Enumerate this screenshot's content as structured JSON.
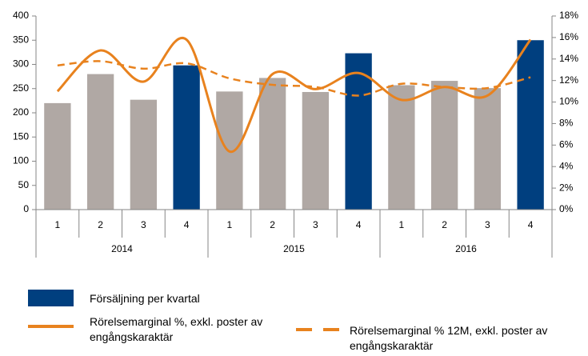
{
  "chart_data": {
    "type": "bar_line",
    "categories": [
      "1",
      "2",
      "3",
      "4",
      "1",
      "2",
      "3",
      "4",
      "1",
      "2",
      "3",
      "4"
    ],
    "groups": [
      "2014",
      "2015",
      "2016"
    ],
    "ylim": [
      0,
      400
    ],
    "yticks": [
      0,
      50,
      100,
      150,
      200,
      250,
      300,
      350,
      400
    ],
    "y2lim": [
      0,
      18
    ],
    "y2ticks": [
      {
        "value": 0,
        "label": "0%"
      },
      {
        "value": 2,
        "label": "2%"
      },
      {
        "value": 4,
        "label": "4%"
      },
      {
        "value": 6,
        "label": "6%"
      },
      {
        "value": 8,
        "label": "8%"
      },
      {
        "value": 10,
        "label": "10%"
      },
      {
        "value": 12,
        "label": "12%"
      },
      {
        "value": 14,
        "label": "14%"
      },
      {
        "value": 16,
        "label": "16%"
      },
      {
        "value": 18,
        "label": "18%"
      }
    ],
    "series": [
      {
        "name": "Försäljning per kvartal",
        "type": "bar",
        "color": "#003f7f",
        "colors": [
          "#b0a8a4",
          "#b0a8a4",
          "#b0a8a4",
          "#003f7f",
          "#b0a8a4",
          "#b0a8a4",
          "#b0a8a4",
          "#003f7f",
          "#b0a8a4",
          "#b0a8a4",
          "#b0a8a4",
          "#003f7f"
        ],
        "values": [
          220,
          280,
          227,
          298,
          244,
          272,
          243,
          323,
          257,
          266,
          251,
          350
        ]
      },
      {
        "name": "Rörelsemarginal %, exkl. poster av engångskaraktär",
        "type": "line",
        "axis": "y2",
        "color": "#e8821e",
        "dashed": false,
        "values": [
          11.0,
          14.8,
          11.9,
          15.8,
          5.4,
          12.6,
          11.2,
          12.7,
          10.2,
          11.4,
          10.6,
          15.8
        ]
      },
      {
        "name": "Rörelsemarginal % 12M, exkl. poster av engångskaraktär",
        "type": "line",
        "axis": "y2",
        "color": "#e8821e",
        "dashed": true,
        "values": [
          13.4,
          13.8,
          13.1,
          13.6,
          12.2,
          11.6,
          11.4,
          10.6,
          11.7,
          11.4,
          11.3,
          12.3
        ]
      }
    ]
  }
}
